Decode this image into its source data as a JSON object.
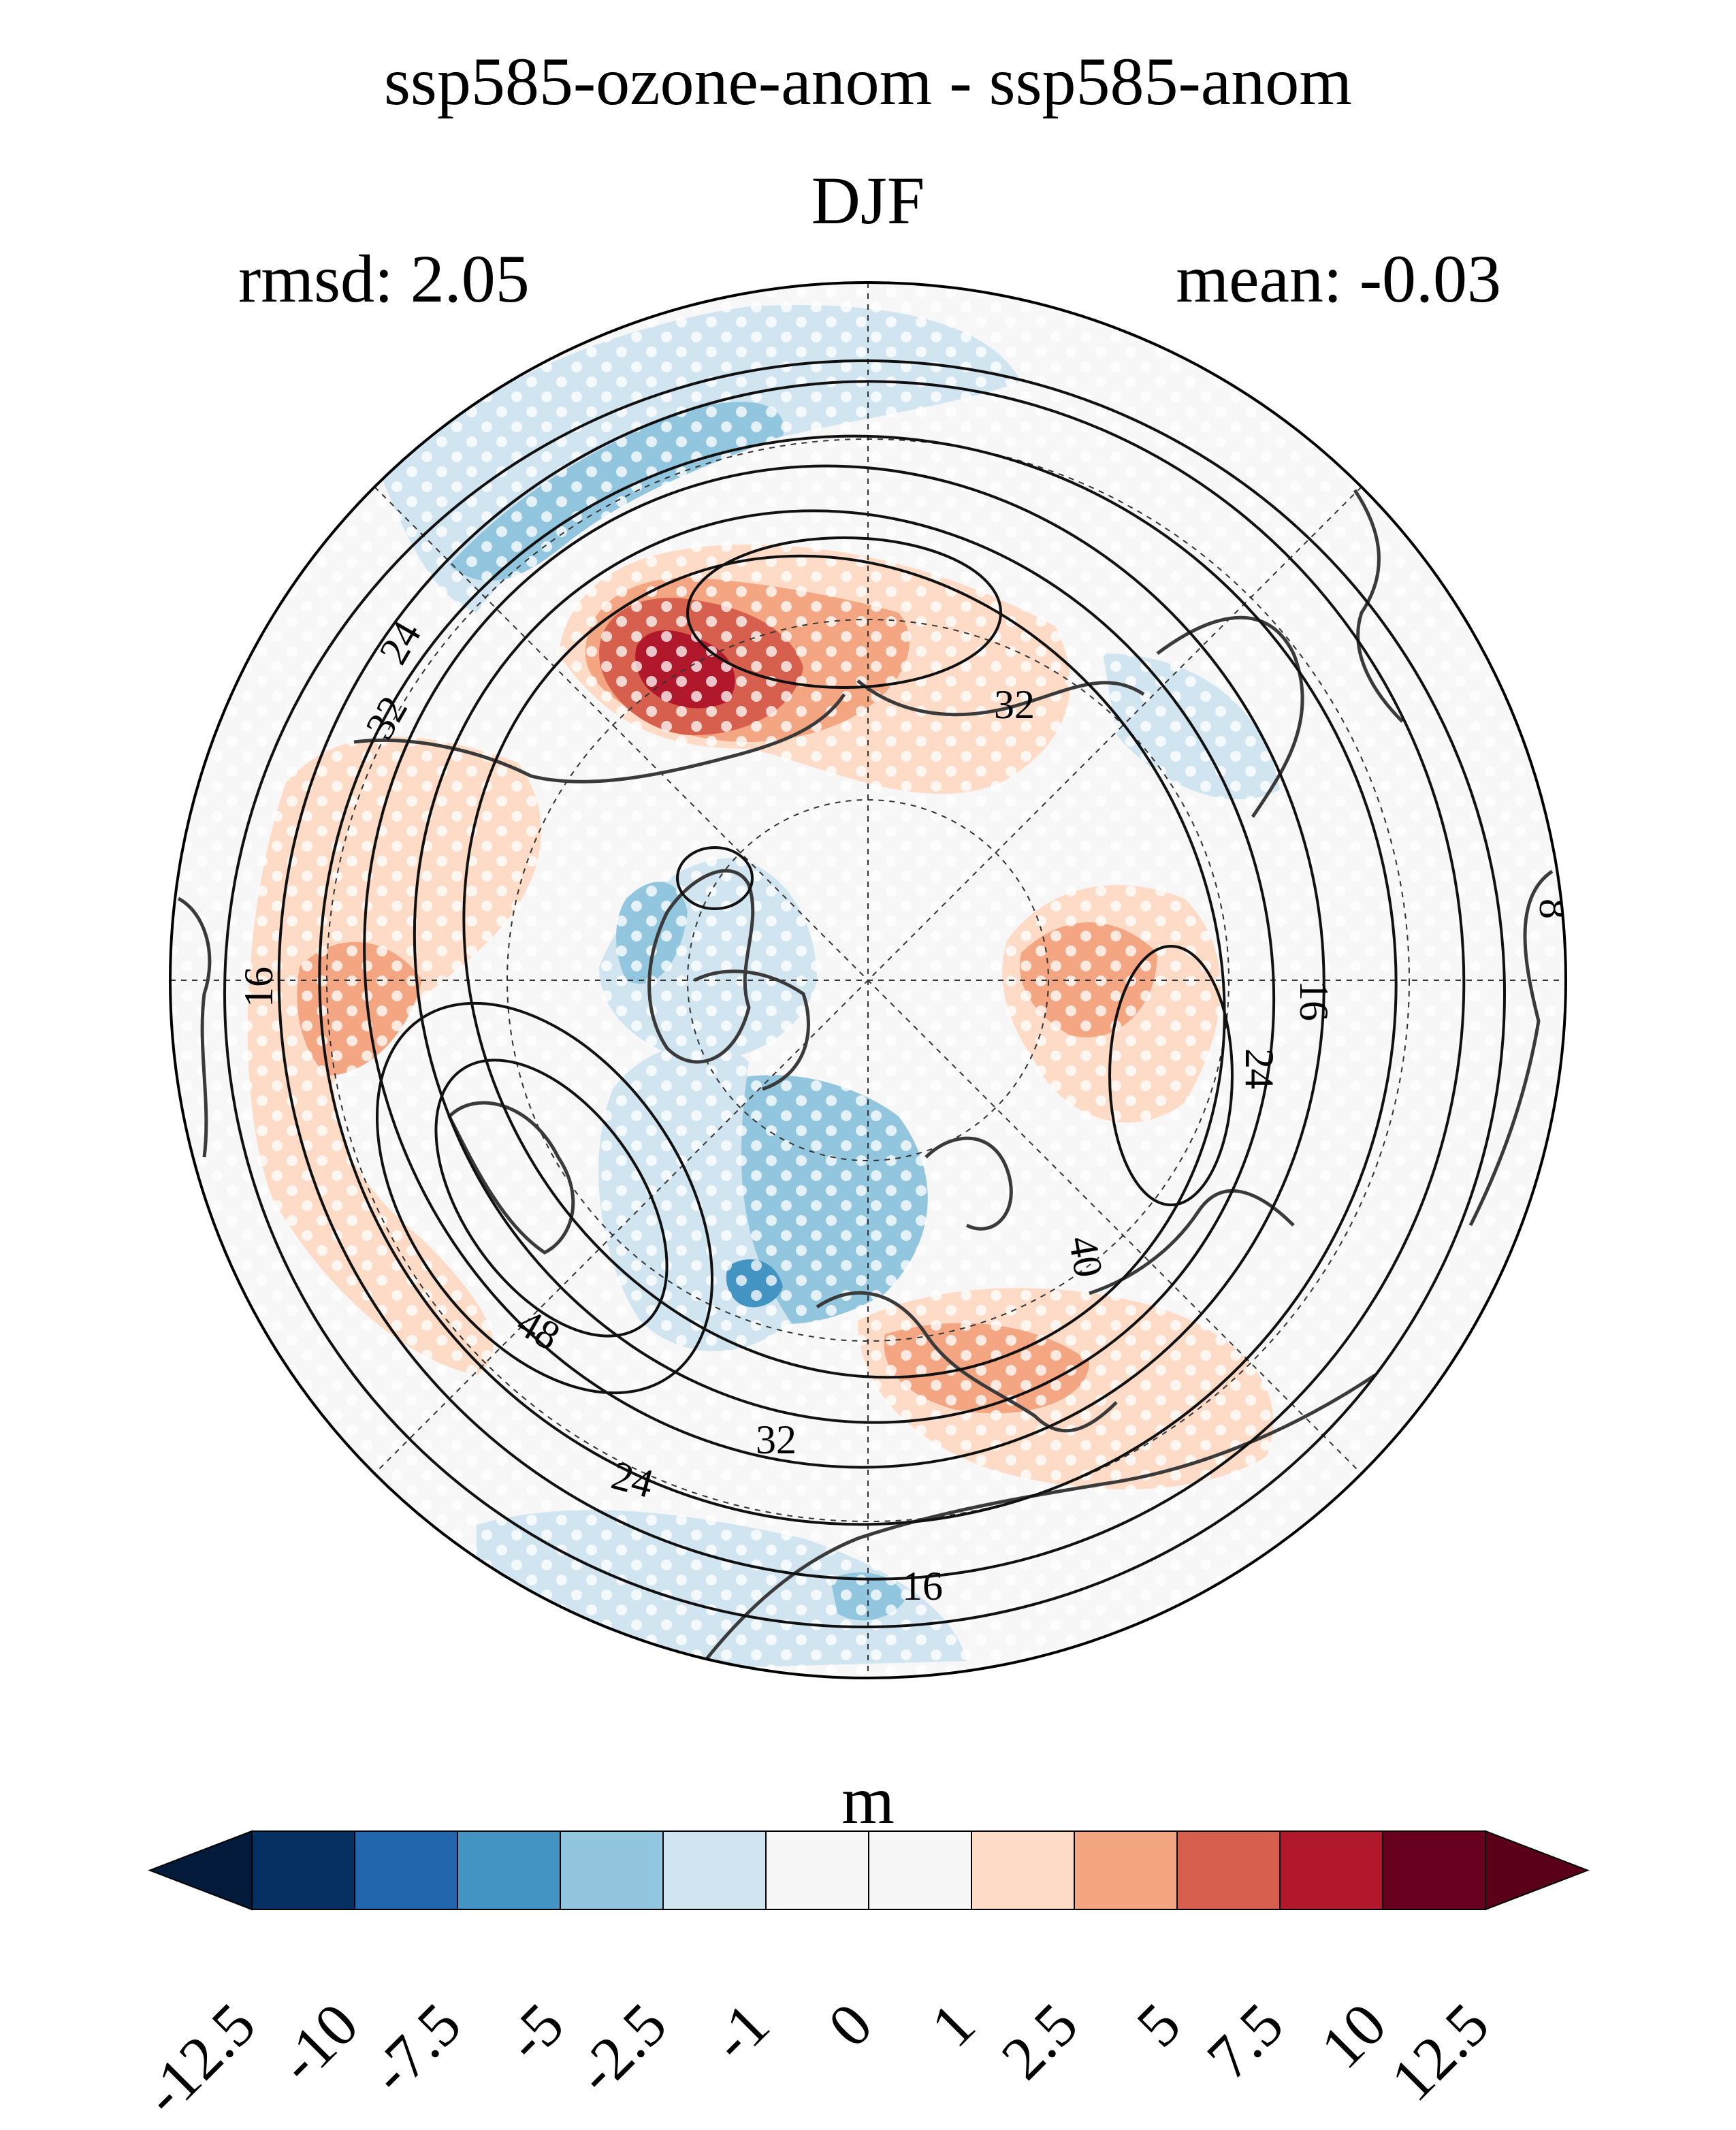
{
  "title": {
    "line1": "ssp585-ozone-anom - ssp585-anom",
    "line2": "DJF"
  },
  "stats": {
    "rmsd": "rmsd: 2.05",
    "mean": "mean: -0.03"
  },
  "colorbar": {
    "unit": "m",
    "tick_labels": [
      "-12.5",
      "-10",
      "-7.5",
      "-5",
      "-2.5",
      "-1",
      "0",
      "1",
      "2.5",
      "5",
      "7.5",
      "10",
      "12.5"
    ],
    "colors": [
      "#053061",
      "#2166ac",
      "#4393c3",
      "#92c5de",
      "#d1e5f0",
      "#f7f7f7",
      "#f7f7f7",
      "#fddbc7",
      "#f4a582",
      "#d6604d",
      "#b2182b",
      "#67001f"
    ],
    "under_color": "#031a3a",
    "over_color": "#5a0018"
  },
  "contour_labels": [
    "24",
    "32",
    "32",
    "16",
    "8",
    "16",
    "24",
    "40",
    "48",
    "32",
    "24",
    "16"
  ],
  "map": {
    "projection": "north polar stereographic",
    "anomaly_colors": {
      "strong_pos": "#b2182b",
      "pos": "#d6604d",
      "light_pos": "#f4a582",
      "faint_pos": "#fddbc7",
      "faint_neg": "#d1e5f0",
      "light_neg": "#92c5de",
      "neg": "#4393c3"
    }
  }
}
